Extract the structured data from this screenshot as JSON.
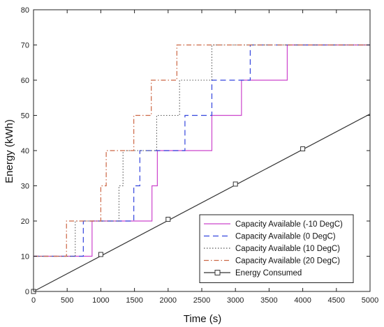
{
  "chart_data": {
    "type": "line",
    "xlabel": "Time (s)",
    "ylabel": "Energy (kWh)",
    "xlim": [
      0,
      5000
    ],
    "ylim": [
      0,
      80
    ],
    "xticks": [
      0,
      500,
      1000,
      1500,
      2000,
      2500,
      3000,
      3500,
      4000,
      4500,
      5000
    ],
    "yticks": [
      0,
      10,
      20,
      30,
      40,
      50,
      60,
      70,
      80
    ],
    "grid": false,
    "legend_position": "bottom-right",
    "series": [
      {
        "name": "Capacity Available (-10 DegC)",
        "color": "#cc44cc",
        "style": "solid",
        "step": true,
        "x": [
          0,
          870,
          1760,
          1840,
          2650,
          3090,
          3770,
          5000
        ],
        "y": [
          10,
          20,
          30,
          40,
          50,
          60,
          70,
          70
        ]
      },
      {
        "name": "Capacity Available (0 DegC)",
        "color": "#3344dd",
        "style": "dashed",
        "step": true,
        "x": [
          0,
          740,
          1490,
          1580,
          1620,
          2250,
          2650,
          3220,
          5000
        ],
        "y": [
          10,
          20,
          30,
          40,
          40,
          50,
          60,
          70,
          70
        ]
      },
      {
        "name": "Capacity Available (10 DegC)",
        "color": "#555555",
        "style": "dotted",
        "step": true,
        "x": [
          0,
          620,
          1270,
          1330,
          1830,
          2170,
          2650,
          5000
        ],
        "y": [
          10,
          20,
          30,
          40,
          50,
          60,
          70,
          70
        ]
      },
      {
        "name": "Capacity Available (20 DegC)",
        "color": "#cc6644",
        "style": "dashdot",
        "step": true,
        "x": [
          0,
          490,
          1000,
          1080,
          1490,
          1750,
          2130,
          5000
        ],
        "y": [
          10,
          20,
          30,
          40,
          50,
          60,
          70,
          70
        ]
      },
      {
        "name": "Energy Consumed",
        "color": "#333333",
        "style": "solid",
        "step": false,
        "marker": "square",
        "x": [
          0,
          5000
        ],
        "y": [
          0,
          50.4
        ],
        "marker_x": [
          0,
          1000,
          2000,
          3000,
          4000
        ],
        "marker_y": [
          0,
          10.5,
          20.5,
          30.5,
          40.5
        ]
      }
    ]
  }
}
